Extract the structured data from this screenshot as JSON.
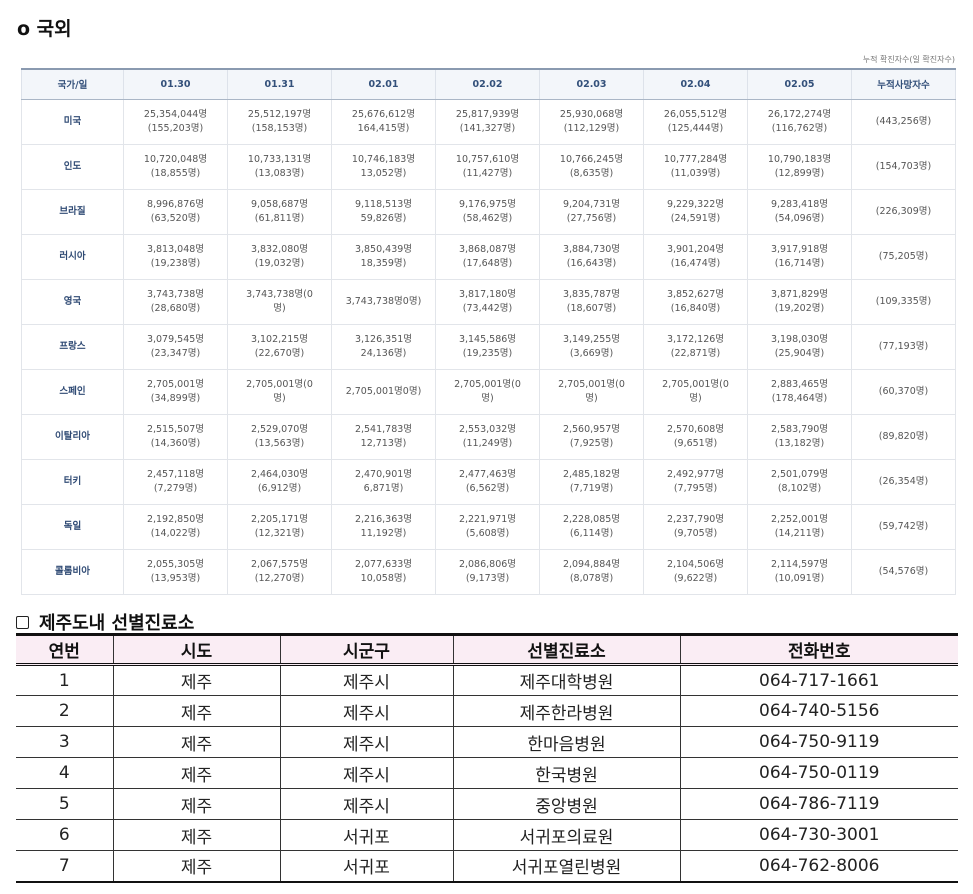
{
  "international": {
    "title": "o 국외",
    "unit_note": "누적 확진자수(일 확진자수)",
    "headers": [
      "국가/일",
      "01.30",
      "01.31",
      "02.01",
      "02.02",
      "02.03",
      "02.04",
      "02.05",
      "누적사망자수"
    ],
    "rows": [
      {
        "country": "미국",
        "cells": [
          [
            "25,354,044명",
            "(155,203명)"
          ],
          [
            "25,512,197명",
            "(158,153명)"
          ],
          [
            "25,676,612명",
            "164,415명)"
          ],
          [
            "25,817,939명",
            "(141,327명)"
          ],
          [
            "25,930,068명",
            "(112,129명)"
          ],
          [
            "26,055,512명",
            "(125,444명)"
          ],
          [
            "26,172,274명",
            "(116,762명)"
          ]
        ],
        "deaths": "(443,256명)"
      },
      {
        "country": "인도",
        "cells": [
          [
            "10,720,048명",
            "(18,855명)"
          ],
          [
            "10,733,131명",
            "(13,083명)"
          ],
          [
            "10,746,183명",
            "13,052명)"
          ],
          [
            "10,757,610명",
            "(11,427명)"
          ],
          [
            "10,766,245명",
            "(8,635명)"
          ],
          [
            "10,777,284명",
            "(11,039명)"
          ],
          [
            "10,790,183명",
            "(12,899명)"
          ]
        ],
        "deaths": "(154,703명)"
      },
      {
        "country": "브라질",
        "cells": [
          [
            "8,996,876명",
            "(63,520명)"
          ],
          [
            "9,058,687명",
            "(61,811명)"
          ],
          [
            "9,118,513명",
            "59,826명)"
          ],
          [
            "9,176,975명",
            "(58,462명)"
          ],
          [
            "9,204,731명",
            "(27,756명)"
          ],
          [
            "9,229,322명",
            "(24,591명)"
          ],
          [
            "9,283,418명",
            "(54,096명)"
          ]
        ],
        "deaths": "(226,309명)"
      },
      {
        "country": "러시아",
        "cells": [
          [
            "3,813,048명",
            "(19,238명)"
          ],
          [
            "3,832,080명",
            "(19,032명)"
          ],
          [
            "3,850,439명",
            "18,359명)"
          ],
          [
            "3,868,087명",
            "(17,648명)"
          ],
          [
            "3,884,730명",
            "(16,643명)"
          ],
          [
            "3,901,204명",
            "(16,474명)"
          ],
          [
            "3,917,918명",
            "(16,714명)"
          ]
        ],
        "deaths": "(75,205명)"
      },
      {
        "country": "영국",
        "cells": [
          [
            "3,743,738명",
            "(28,680명)"
          ],
          [
            "3,743,738명(0",
            "명)"
          ],
          [
            "3,743,738명0명)"
          ],
          [
            "3,817,180명",
            "(73,442명)"
          ],
          [
            "3,835,787명",
            "(18,607명)"
          ],
          [
            "3,852,627명",
            "(16,840명)"
          ],
          [
            "3,871,829명",
            "(19,202명)"
          ]
        ],
        "deaths": "(109,335명)"
      },
      {
        "country": "프랑스",
        "cells": [
          [
            "3,079,545명",
            "(23,347명)"
          ],
          [
            "3,102,215명",
            "(22,670명)"
          ],
          [
            "3,126,351명",
            "24,136명)"
          ],
          [
            "3,145,586명",
            "(19,235명)"
          ],
          [
            "3,149,255명",
            "(3,669명)"
          ],
          [
            "3,172,126명",
            "(22,871명)"
          ],
          [
            "3,198,030명",
            "(25,904명)"
          ]
        ],
        "deaths": "(77,193명)"
      },
      {
        "country": "스페인",
        "cells": [
          [
            "2,705,001명",
            "(34,899명)"
          ],
          [
            "2,705,001명(0",
            "명)"
          ],
          [
            "2,705,001명0명)"
          ],
          [
            "2,705,001명(0",
            "명)"
          ],
          [
            "2,705,001명(0",
            "명)"
          ],
          [
            "2,705,001명(0",
            "명)"
          ],
          [
            "2,883,465명",
            "(178,464명)"
          ]
        ],
        "deaths": "(60,370명)"
      },
      {
        "country": "이탈리아",
        "cells": [
          [
            "2,515,507명",
            "(14,360명)"
          ],
          [
            "2,529,070명",
            "(13,563명)"
          ],
          [
            "2,541,783명",
            "12,713명)"
          ],
          [
            "2,553,032명",
            "(11,249명)"
          ],
          [
            "2,560,957명",
            "(7,925명)"
          ],
          [
            "2,570,608명",
            "(9,651명)"
          ],
          [
            "2,583,790명",
            "(13,182명)"
          ]
        ],
        "deaths": "(89,820명)"
      },
      {
        "country": "터키",
        "cells": [
          [
            "2,457,118명",
            "(7,279명)"
          ],
          [
            "2,464,030명",
            "(6,912명)"
          ],
          [
            "2,470,901명",
            "6,871명)"
          ],
          [
            "2,477,463명",
            "(6,562명)"
          ],
          [
            "2,485,182명",
            "(7,719명)"
          ],
          [
            "2,492,977명",
            "(7,795명)"
          ],
          [
            "2,501,079명",
            "(8,102명)"
          ]
        ],
        "deaths": "(26,354명)"
      },
      {
        "country": "독일",
        "cells": [
          [
            "2,192,850명",
            "(14,022명)"
          ],
          [
            "2,205,171명",
            "(12,321명)"
          ],
          [
            "2,216,363명",
            "11,192명)"
          ],
          [
            "2,221,971명",
            "(5,608명)"
          ],
          [
            "2,228,085명",
            "(6,114명)"
          ],
          [
            "2,237,790명",
            "(9,705명)"
          ],
          [
            "2,252,001명",
            "(14,211명)"
          ]
        ],
        "deaths": "(59,742명)"
      },
      {
        "country": "콜롬비아",
        "cells": [
          [
            "2,055,305명",
            "(13,953명)"
          ],
          [
            "2,067,575명",
            "(12,270명)"
          ],
          [
            "2,077,633명",
            "10,058명)"
          ],
          [
            "2,086,806명",
            "(9,173명)"
          ],
          [
            "2,094,884명",
            "(8,078명)"
          ],
          [
            "2,104,506명",
            "(9,622명)"
          ],
          [
            "2,114,597명",
            "(10,091명)"
          ]
        ],
        "deaths": "(54,576명)"
      }
    ]
  },
  "clinics": {
    "title": "제주도내 선별진료소",
    "headers": [
      "연번",
      "시도",
      "시군구",
      "선별진료소",
      "전화번호"
    ],
    "rows": [
      [
        "1",
        "제주",
        "제주시",
        "제주대학병원",
        "064-717-1661"
      ],
      [
        "2",
        "제주",
        "제주시",
        "제주한라병원",
        "064-740-5156"
      ],
      [
        "3",
        "제주",
        "제주시",
        "한마음병원",
        "064-750-9119"
      ],
      [
        "4",
        "제주",
        "제주시",
        "한국병원",
        "064-750-0119"
      ],
      [
        "5",
        "제주",
        "제주시",
        "중앙병원",
        "064-786-7119"
      ],
      [
        "6",
        "제주",
        "서귀포",
        "서귀포의료원",
        "064-730-3001"
      ],
      [
        "7",
        "제주",
        "서귀포",
        "서귀포열린병원",
        "064-762-8006"
      ]
    ]
  }
}
